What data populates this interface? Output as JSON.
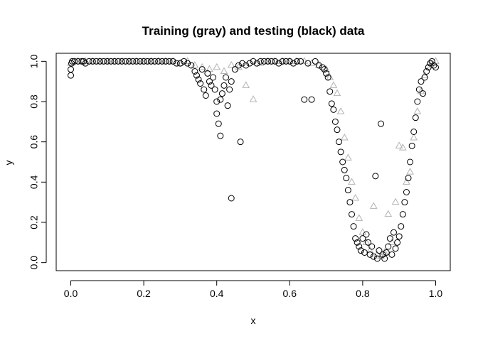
{
  "chart_data": {
    "type": "scatter",
    "title": "Training (gray) and testing (black) data",
    "xlabel": "x",
    "ylabel": "y",
    "xlim": [
      -0.04,
      1.04
    ],
    "ylim": [
      -0.04,
      1.04
    ],
    "xticks": [
      0.0,
      0.2,
      0.4,
      0.6,
      0.8,
      1.0
    ],
    "xtick_labels": [
      "0.0",
      "0.2",
      "0.4",
      "0.6",
      "0.8",
      "1.0"
    ],
    "yticks": [
      0.0,
      0.2,
      0.4,
      0.6,
      0.8,
      1.0
    ],
    "ytick_labels": [
      "0.0",
      "0.2",
      "0.4",
      "0.6",
      "0.8",
      "1.0"
    ],
    "grid": false,
    "series": [
      {
        "marker": "triangle",
        "color": "#b3b3b3",
        "points": [
          [
            0.0,
            0.99
          ],
          [
            0.02,
            1.0
          ],
          [
            0.04,
            1.0
          ],
          [
            0.06,
            1.0
          ],
          [
            0.08,
            1.0
          ],
          [
            0.1,
            1.0
          ],
          [
            0.12,
            1.0
          ],
          [
            0.14,
            1.0
          ],
          [
            0.16,
            1.0
          ],
          [
            0.18,
            1.0
          ],
          [
            0.2,
            1.0
          ],
          [
            0.22,
            1.0
          ],
          [
            0.24,
            1.0
          ],
          [
            0.26,
            1.0
          ],
          [
            0.28,
            1.0
          ],
          [
            0.3,
            0.99
          ],
          [
            0.32,
            1.0
          ],
          [
            0.34,
            0.98
          ],
          [
            0.36,
            0.97
          ],
          [
            0.38,
            0.96
          ],
          [
            0.4,
            0.97
          ],
          [
            0.42,
            0.95
          ],
          [
            0.44,
            0.98
          ],
          [
            0.46,
            0.97
          ],
          [
            0.48,
            0.88
          ],
          [
            0.5,
            0.81
          ],
          [
            0.52,
            0.99
          ],
          [
            0.54,
            1.0
          ],
          [
            0.56,
            1.0
          ],
          [
            0.58,
            1.0
          ],
          [
            0.6,
            1.0
          ],
          [
            0.62,
            1.0
          ],
          [
            0.64,
            1.0
          ],
          [
            0.66,
            0.99
          ],
          [
            0.68,
            0.98
          ],
          [
            0.7,
            0.96
          ],
          [
            0.71,
            0.92
          ],
          [
            0.72,
            0.88
          ],
          [
            0.73,
            0.84
          ],
          [
            0.74,
            0.75
          ],
          [
            0.75,
            0.62
          ],
          [
            0.76,
            0.52
          ],
          [
            0.77,
            0.4
          ],
          [
            0.78,
            0.32
          ],
          [
            0.79,
            0.22
          ],
          [
            0.8,
            0.15
          ],
          [
            0.81,
            0.1
          ],
          [
            0.82,
            0.06
          ],
          [
            0.83,
            0.28
          ],
          [
            0.84,
            0.04
          ],
          [
            0.85,
            0.03
          ],
          [
            0.86,
            0.05
          ],
          [
            0.87,
            0.24
          ],
          [
            0.88,
            0.1
          ],
          [
            0.89,
            0.3
          ],
          [
            0.9,
            0.58
          ],
          [
            0.91,
            0.57
          ],
          [
            0.92,
            0.4
          ],
          [
            0.93,
            0.45
          ],
          [
            0.94,
            0.62
          ],
          [
            0.95,
            0.75
          ],
          [
            0.96,
            0.85
          ],
          [
            0.97,
            0.93
          ],
          [
            0.98,
            0.98
          ],
          [
            0.99,
            0.99
          ],
          [
            1.0,
            1.0
          ]
        ]
      },
      {
        "marker": "circle",
        "color": "#000000",
        "points": [
          [
            0.0,
            0.93
          ],
          [
            0.0,
            0.96
          ],
          [
            0.002,
            0.99
          ],
          [
            0.004,
            1.0
          ],
          [
            0.01,
            1.0
          ],
          [
            0.02,
            1.0
          ],
          [
            0.03,
            1.0
          ],
          [
            0.035,
            1.0
          ],
          [
            0.04,
            0.99
          ],
          [
            0.05,
            1.0
          ],
          [
            0.06,
            1.0
          ],
          [
            0.07,
            1.0
          ],
          [
            0.08,
            1.0
          ],
          [
            0.09,
            1.0
          ],
          [
            0.1,
            1.0
          ],
          [
            0.11,
            1.0
          ],
          [
            0.12,
            1.0
          ],
          [
            0.13,
            1.0
          ],
          [
            0.14,
            1.0
          ],
          [
            0.15,
            1.0
          ],
          [
            0.16,
            1.0
          ],
          [
            0.17,
            1.0
          ],
          [
            0.18,
            1.0
          ],
          [
            0.19,
            1.0
          ],
          [
            0.2,
            1.0
          ],
          [
            0.21,
            1.0
          ],
          [
            0.22,
            1.0
          ],
          [
            0.23,
            1.0
          ],
          [
            0.24,
            1.0
          ],
          [
            0.25,
            1.0
          ],
          [
            0.26,
            1.0
          ],
          [
            0.27,
            1.0
          ],
          [
            0.28,
            1.0
          ],
          [
            0.29,
            0.99
          ],
          [
            0.3,
            0.99
          ],
          [
            0.31,
            1.0
          ],
          [
            0.32,
            0.99
          ],
          [
            0.33,
            0.98
          ],
          [
            0.34,
            0.95
          ],
          [
            0.345,
            0.93
          ],
          [
            0.35,
            0.91
          ],
          [
            0.355,
            0.89
          ],
          [
            0.36,
            0.96
          ],
          [
            0.365,
            0.86
          ],
          [
            0.37,
            0.83
          ],
          [
            0.375,
            0.94
          ],
          [
            0.38,
            0.9
          ],
          [
            0.385,
            0.88
          ],
          [
            0.39,
            0.92
          ],
          [
            0.395,
            0.86
          ],
          [
            0.4,
            0.8
          ],
          [
            0.4,
            0.74
          ],
          [
            0.405,
            0.69
          ],
          [
            0.41,
            0.63
          ],
          [
            0.41,
            0.81
          ],
          [
            0.415,
            0.84
          ],
          [
            0.42,
            0.88
          ],
          [
            0.425,
            0.92
          ],
          [
            0.43,
            0.78
          ],
          [
            0.435,
            0.86
          ],
          [
            0.44,
            0.9
          ],
          [
            0.44,
            0.32
          ],
          [
            0.45,
            0.96
          ],
          [
            0.46,
            0.98
          ],
          [
            0.465,
            0.6
          ],
          [
            0.47,
            0.99
          ],
          [
            0.48,
            0.98
          ],
          [
            0.49,
            0.99
          ],
          [
            0.5,
            1.0
          ],
          [
            0.51,
            0.99
          ],
          [
            0.52,
            1.0
          ],
          [
            0.53,
            1.0
          ],
          [
            0.54,
            1.0
          ],
          [
            0.55,
            1.0
          ],
          [
            0.56,
            1.0
          ],
          [
            0.57,
            0.99
          ],
          [
            0.58,
            1.0
          ],
          [
            0.59,
            1.0
          ],
          [
            0.6,
            1.0
          ],
          [
            0.61,
            0.99
          ],
          [
            0.62,
            1.0
          ],
          [
            0.63,
            1.0
          ],
          [
            0.64,
            0.81
          ],
          [
            0.65,
            0.99
          ],
          [
            0.66,
            0.81
          ],
          [
            0.67,
            1.0
          ],
          [
            0.68,
            0.98
          ],
          [
            0.69,
            0.97
          ],
          [
            0.695,
            0.96
          ],
          [
            0.7,
            0.94
          ],
          [
            0.705,
            0.92
          ],
          [
            0.71,
            0.85
          ],
          [
            0.715,
            0.79
          ],
          [
            0.72,
            0.76
          ],
          [
            0.725,
            0.7
          ],
          [
            0.73,
            0.66
          ],
          [
            0.735,
            0.6
          ],
          [
            0.74,
            0.55
          ],
          [
            0.745,
            0.5
          ],
          [
            0.75,
            0.46
          ],
          [
            0.755,
            0.42
          ],
          [
            0.76,
            0.36
          ],
          [
            0.765,
            0.3
          ],
          [
            0.77,
            0.24
          ],
          [
            0.775,
            0.18
          ],
          [
            0.78,
            0.12
          ],
          [
            0.785,
            0.1
          ],
          [
            0.79,
            0.08
          ],
          [
            0.795,
            0.06
          ],
          [
            0.8,
            0.12
          ],
          [
            0.805,
            0.05
          ],
          [
            0.81,
            0.14
          ],
          [
            0.815,
            0.1
          ],
          [
            0.82,
            0.04
          ],
          [
            0.825,
            0.08
          ],
          [
            0.83,
            0.03
          ],
          [
            0.835,
            0.43
          ],
          [
            0.84,
            0.02
          ],
          [
            0.845,
            0.06
          ],
          [
            0.85,
            0.69
          ],
          [
            0.855,
            0.04
          ],
          [
            0.86,
            0.02
          ],
          [
            0.865,
            0.05
          ],
          [
            0.87,
            0.08
          ],
          [
            0.875,
            0.12
          ],
          [
            0.88,
            0.04
          ],
          [
            0.885,
            0.15
          ],
          [
            0.89,
            0.07
          ],
          [
            0.895,
            0.1
          ],
          [
            0.9,
            0.13
          ],
          [
            0.905,
            0.18
          ],
          [
            0.91,
            0.24
          ],
          [
            0.915,
            0.3
          ],
          [
            0.92,
            0.35
          ],
          [
            0.925,
            0.42
          ],
          [
            0.93,
            0.5
          ],
          [
            0.935,
            0.58
          ],
          [
            0.94,
            0.65
          ],
          [
            0.945,
            0.72
          ],
          [
            0.95,
            0.8
          ],
          [
            0.955,
            0.86
          ],
          [
            0.96,
            0.9
          ],
          [
            0.965,
            0.84
          ],
          [
            0.97,
            0.92
          ],
          [
            0.975,
            0.95
          ],
          [
            0.98,
            0.97
          ],
          [
            0.985,
            0.99
          ],
          [
            0.99,
            1.0
          ],
          [
            0.995,
            0.98
          ],
          [
            1.0,
            0.97
          ]
        ]
      }
    ]
  }
}
